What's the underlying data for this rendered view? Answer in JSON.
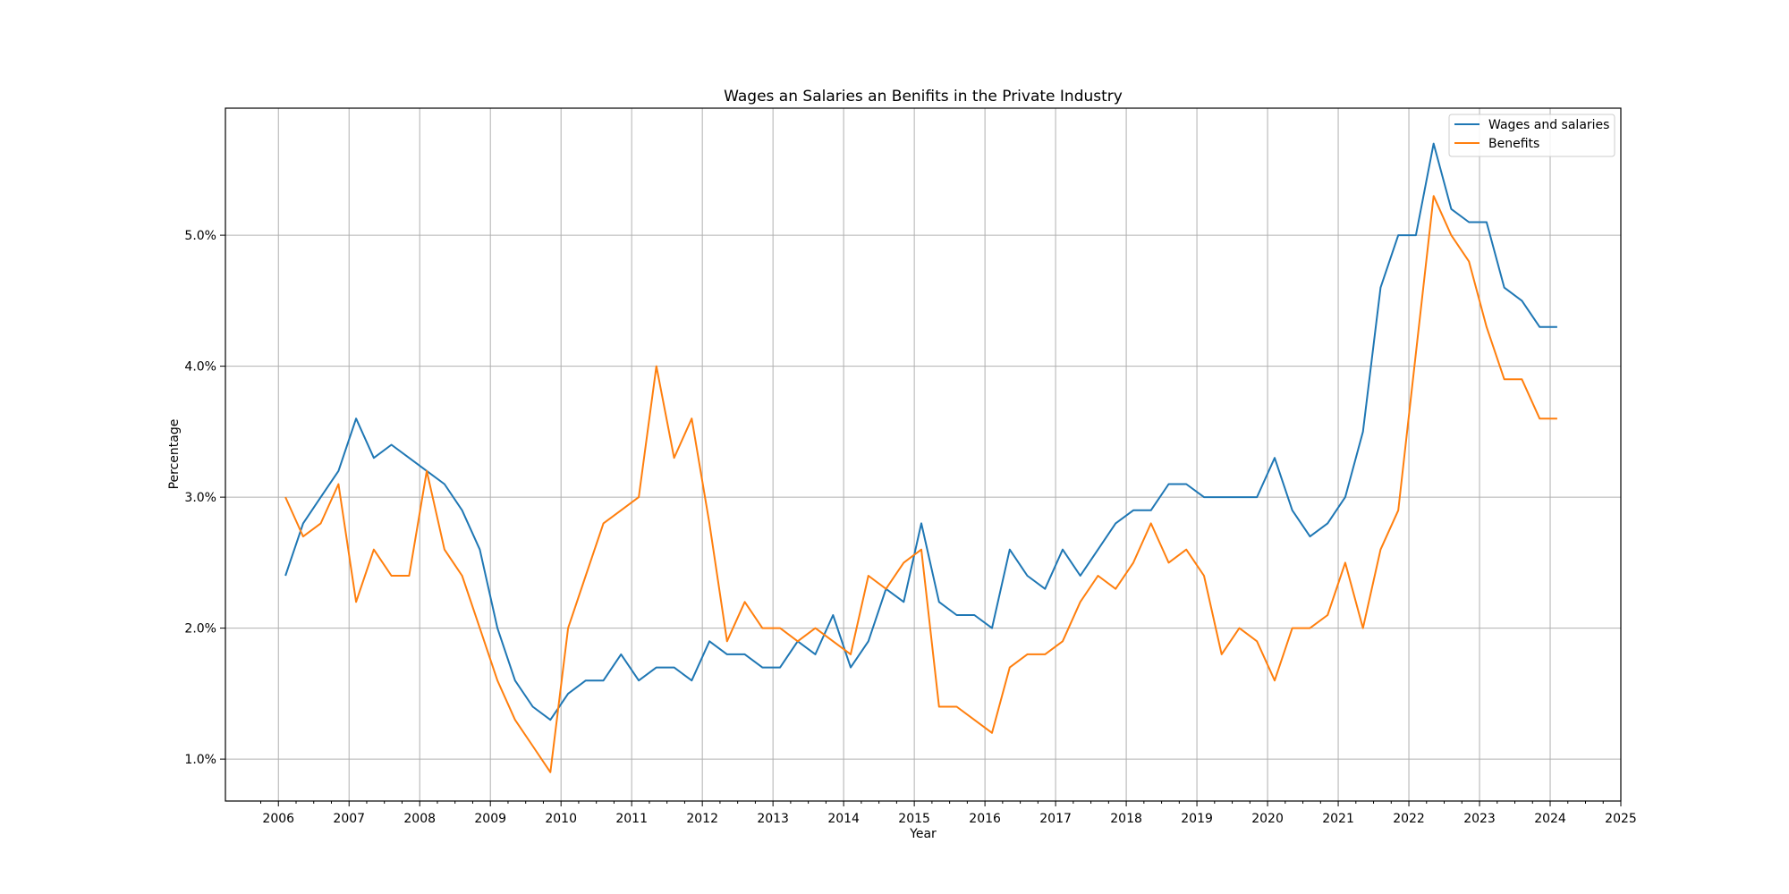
{
  "chart_data": {
    "type": "line",
    "title": "Wages an Salaries an Benifits in the Private Industry",
    "xlabel": "Year",
    "ylabel": "Percentage",
    "xlim": [
      2005.25,
      2025.0
    ],
    "ylim": [
      0.68,
      5.97
    ],
    "grid": true,
    "legend_position": "top-right",
    "x_ticks": [
      "2006",
      "2007",
      "2008",
      "2009",
      "2010",
      "2011",
      "2012",
      "2013",
      "2014",
      "2015",
      "2016",
      "2017",
      "2018",
      "2019",
      "2020",
      "2021",
      "2022",
      "2023",
      "2024",
      "2025"
    ],
    "y_ticks": [
      {
        "value": 1.0,
        "label": "1.0%"
      },
      {
        "value": 2.0,
        "label": "2.0%"
      },
      {
        "value": 3.0,
        "label": "3.0%"
      },
      {
        "value": 4.0,
        "label": "4.0%"
      },
      {
        "value": 5.0,
        "label": "5.0%"
      }
    ],
    "x": [
      "2006-Q1",
      "2006-Q2",
      "2006-Q3",
      "2006-Q4",
      "2007-Q1",
      "2007-Q2",
      "2007-Q3",
      "2007-Q4",
      "2008-Q1",
      "2008-Q2",
      "2008-Q3",
      "2008-Q4",
      "2009-Q1",
      "2009-Q2",
      "2009-Q3",
      "2009-Q4",
      "2010-Q1",
      "2010-Q2",
      "2010-Q3",
      "2010-Q4",
      "2011-Q1",
      "2011-Q2",
      "2011-Q3",
      "2011-Q4",
      "2012-Q1",
      "2012-Q2",
      "2012-Q3",
      "2012-Q4",
      "2013-Q1",
      "2013-Q2",
      "2013-Q3",
      "2013-Q4",
      "2014-Q1",
      "2014-Q2",
      "2014-Q3",
      "2014-Q4",
      "2015-Q1",
      "2015-Q2",
      "2015-Q3",
      "2015-Q4",
      "2016-Q1",
      "2016-Q2",
      "2016-Q3",
      "2016-Q4",
      "2017-Q1",
      "2017-Q2",
      "2017-Q3",
      "2017-Q4",
      "2018-Q1",
      "2018-Q2",
      "2018-Q3",
      "2018-Q4",
      "2019-Q1",
      "2019-Q2",
      "2019-Q3",
      "2019-Q4",
      "2020-Q1",
      "2020-Q2",
      "2020-Q3",
      "2020-Q4",
      "2021-Q1",
      "2021-Q2",
      "2021-Q3",
      "2021-Q4",
      "2022-Q1",
      "2022-Q2",
      "2022-Q3",
      "2022-Q4",
      "2023-Q1",
      "2023-Q2",
      "2023-Q3",
      "2023-Q4",
      "2024-Q1"
    ],
    "series": [
      {
        "name": "Wages and salaries",
        "color": "#1f77b4",
        "values": [
          2.4,
          2.8,
          3.0,
          3.2,
          3.6,
          3.3,
          3.4,
          3.3,
          3.2,
          3.1,
          2.9,
          2.6,
          2.0,
          1.6,
          1.4,
          1.3,
          1.5,
          1.6,
          1.6,
          1.8,
          1.6,
          1.7,
          1.7,
          1.6,
          1.9,
          1.8,
          1.8,
          1.7,
          1.7,
          1.9,
          1.8,
          2.1,
          1.7,
          1.9,
          2.3,
          2.2,
          2.8,
          2.2,
          2.1,
          2.1,
          2.0,
          2.6,
          2.4,
          2.3,
          2.6,
          2.4,
          2.6,
          2.8,
          2.9,
          2.9,
          3.1,
          3.1,
          3.0,
          3.0,
          3.0,
          3.0,
          3.3,
          2.9,
          2.7,
          2.8,
          3.0,
          3.5,
          4.6,
          5.0,
          5.0,
          5.7,
          5.2,
          5.1,
          5.1,
          4.6,
          4.5,
          4.3,
          4.3
        ]
      },
      {
        "name": "Benefits",
        "color": "#ff7f0e",
        "values": [
          3.0,
          2.7,
          2.8,
          3.1,
          2.2,
          2.6,
          2.4,
          2.4,
          3.2,
          2.6,
          2.4,
          2.0,
          1.6,
          1.3,
          1.1,
          0.9,
          2.0,
          2.4,
          2.8,
          2.9,
          3.0,
          4.0,
          3.3,
          3.6,
          2.8,
          1.9,
          2.2,
          2.0,
          2.0,
          1.9,
          2.0,
          1.9,
          1.8,
          2.4,
          2.3,
          2.5,
          2.6,
          1.4,
          1.4,
          1.3,
          1.2,
          1.7,
          1.8,
          1.8,
          1.9,
          2.2,
          2.4,
          2.3,
          2.5,
          2.8,
          2.5,
          2.6,
          2.4,
          1.8,
          2.0,
          1.9,
          1.6,
          2.0,
          2.0,
          2.1,
          2.5,
          2.0,
          2.6,
          2.9,
          4.1,
          5.3,
          5.0,
          4.8,
          4.3,
          3.9,
          3.9,
          3.6,
          3.6
        ]
      }
    ]
  }
}
